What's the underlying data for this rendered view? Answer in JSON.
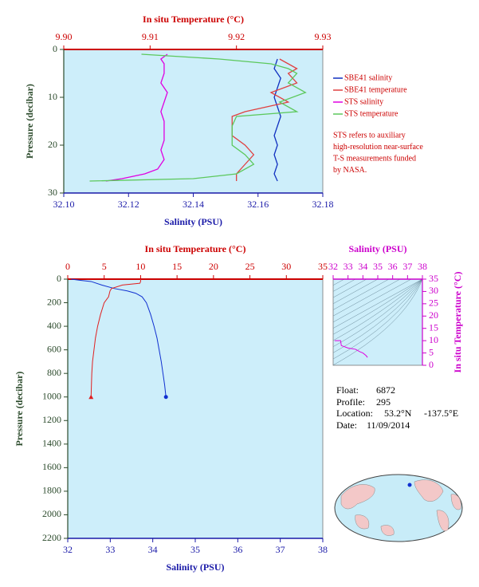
{
  "chart_data": [
    {
      "type": "line",
      "x2label": "In situ Temperature (°C)",
      "xlabel": "Salinity (PSU)",
      "ylabel": "Pressure (decibar)",
      "xlim": [
        32.1,
        32.18
      ],
      "xticks": [
        {
          "value": 32.1,
          "label": "32.10"
        },
        {
          "value": 32.12,
          "label": "32.12"
        },
        {
          "value": 32.14,
          "label": "32.14"
        },
        {
          "value": 32.16,
          "label": "32.16"
        },
        {
          "value": 32.18,
          "label": "32.18"
        }
      ],
      "x2lim": [
        9.9,
        9.93
      ],
      "x2ticks": [
        {
          "value": 9.9,
          "label": "9.90"
        },
        {
          "value": 9.91,
          "label": "9.91"
        },
        {
          "value": 9.92,
          "label": "9.92"
        },
        {
          "value": 9.93,
          "label": "9.93"
        }
      ],
      "ylim": [
        0,
        30
      ],
      "yticks": [
        0,
        10,
        20,
        30
      ],
      "y_inverted": true,
      "legend": "right",
      "series": [
        {
          "name": "SBE41 salinity",
          "color": "#1030c0",
          "axis": "x",
          "y": [
            2,
            4,
            6,
            8,
            10,
            12,
            14,
            16,
            18,
            20,
            22,
            24,
            26,
            27.5
          ],
          "x": [
            32.166,
            32.165,
            32.167,
            32.166,
            32.165,
            32.166,
            32.167,
            32.166,
            32.165,
            32.166,
            32.165,
            32.166,
            32.165,
            32.166
          ]
        },
        {
          "name": "SBE41 temperature",
          "color": "#e04040",
          "axis": "x2",
          "y": [
            2,
            3,
            4,
            5,
            7,
            9,
            11,
            13,
            14,
            16,
            18,
            20,
            22,
            24,
            26,
            27.5
          ],
          "x": [
            9.925,
            9.926,
            9.927,
            9.926,
            9.927,
            9.924,
            9.926,
            9.921,
            9.9195,
            9.9195,
            9.9195,
            9.921,
            9.922,
            9.921,
            9.92,
            9.92
          ]
        },
        {
          "name": "STS salinity",
          "color": "#e000e0",
          "axis": "x",
          "y": [
            1,
            2,
            3,
            5,
            7,
            9,
            11,
            13,
            15,
            17,
            19,
            21,
            23,
            25,
            26,
            27,
            27.5
          ],
          "x": [
            32.132,
            32.13,
            32.131,
            32.131,
            32.13,
            32.132,
            32.131,
            32.13,
            32.131,
            32.131,
            32.131,
            32.13,
            32.131,
            32.129,
            32.125,
            32.118,
            32.113
          ]
        },
        {
          "name": "STS temperature",
          "color": "#5cc85c",
          "axis": "x2",
          "y": [
            1,
            2,
            3,
            4,
            5,
            7,
            9,
            11,
            13,
            14,
            16,
            18,
            20,
            22,
            24,
            26,
            27,
            27.5
          ],
          "x": [
            9.909,
            9.918,
            9.924,
            9.926,
            9.927,
            9.926,
            9.928,
            9.925,
            9.927,
            9.92,
            9.9195,
            9.9195,
            9.9195,
            9.921,
            9.922,
            9.92,
            9.915,
            9.903
          ]
        }
      ],
      "annotation": [
        "STS refers to auxiliary",
        "high-resolution near-surface",
        "T-S measurements funded",
        "by NASA."
      ]
    },
    {
      "type": "line",
      "x2label": "In situ Temperature (°C)",
      "xlabel": "Salinity (PSU)",
      "ylabel": "Pressure (decibar)",
      "xlim": [
        32,
        38
      ],
      "xticks": [
        32,
        33,
        34,
        35,
        36,
        37,
        38
      ],
      "x2lim": [
        0,
        35
      ],
      "x2ticks": [
        0,
        5,
        10,
        15,
        20,
        25,
        30,
        35
      ],
      "ylim": [
        0,
        2200
      ],
      "yticks": [
        0,
        200,
        400,
        600,
        800,
        1000,
        1200,
        1400,
        1600,
        1800,
        2000,
        2200
      ],
      "y_inverted": true,
      "series": [
        {
          "color": "#1030d0",
          "axis": "x",
          "end_marker": "circle",
          "y": [
            0,
            10,
            20,
            50,
            80,
            100,
            120,
            150,
            200,
            300,
            400,
            500,
            600,
            700,
            800,
            900,
            1000
          ],
          "x": [
            32.08,
            32.3,
            32.55,
            32.8,
            33.1,
            33.4,
            33.6,
            33.75,
            33.85,
            33.95,
            34.03,
            34.1,
            34.15,
            34.2,
            34.24,
            34.28,
            34.31
          ]
        },
        {
          "color": "#e02020",
          "axis": "x2",
          "end_marker": "triangle",
          "y": [
            0,
            20,
            35,
            50,
            80,
            100,
            150,
            200,
            300,
            400,
            500,
            600,
            700,
            800,
            900,
            1000
          ],
          "x": [
            10.0,
            10.0,
            9.9,
            7.5,
            6.0,
            5.8,
            5.6,
            5.0,
            4.5,
            4.1,
            3.8,
            3.6,
            3.4,
            3.3,
            3.25,
            3.2
          ]
        }
      ]
    },
    {
      "type": "line",
      "xlabel": "Salinity (PSU)",
      "ylabel": "In situ Temperature (°C)",
      "xlim": [
        32,
        38
      ],
      "xticks": [
        32,
        33,
        34,
        35,
        36,
        37,
        38
      ],
      "ylim": [
        0,
        35
      ],
      "yticks": [
        0,
        5,
        10,
        15,
        20,
        25,
        30,
        35
      ],
      "series": [
        {
          "color": "#e000e0",
          "axis": "x",
          "y": [
            10,
            10,
            8,
            7,
            6.5,
            5.5,
            5,
            4,
            3.2
          ],
          "x": [
            32.1,
            32.5,
            32.55,
            33.0,
            33.5,
            33.8,
            34.0,
            34.2,
            34.31
          ]
        }
      ]
    }
  ],
  "info": {
    "float_label": "Float:",
    "float": "6872",
    "profile_label": "Profile:",
    "profile": "295",
    "location_label": "Location:",
    "latitude": "53.2°N",
    "longitude": "-137.5°E",
    "date_label": "Date:",
    "date": "11/09/2014"
  }
}
